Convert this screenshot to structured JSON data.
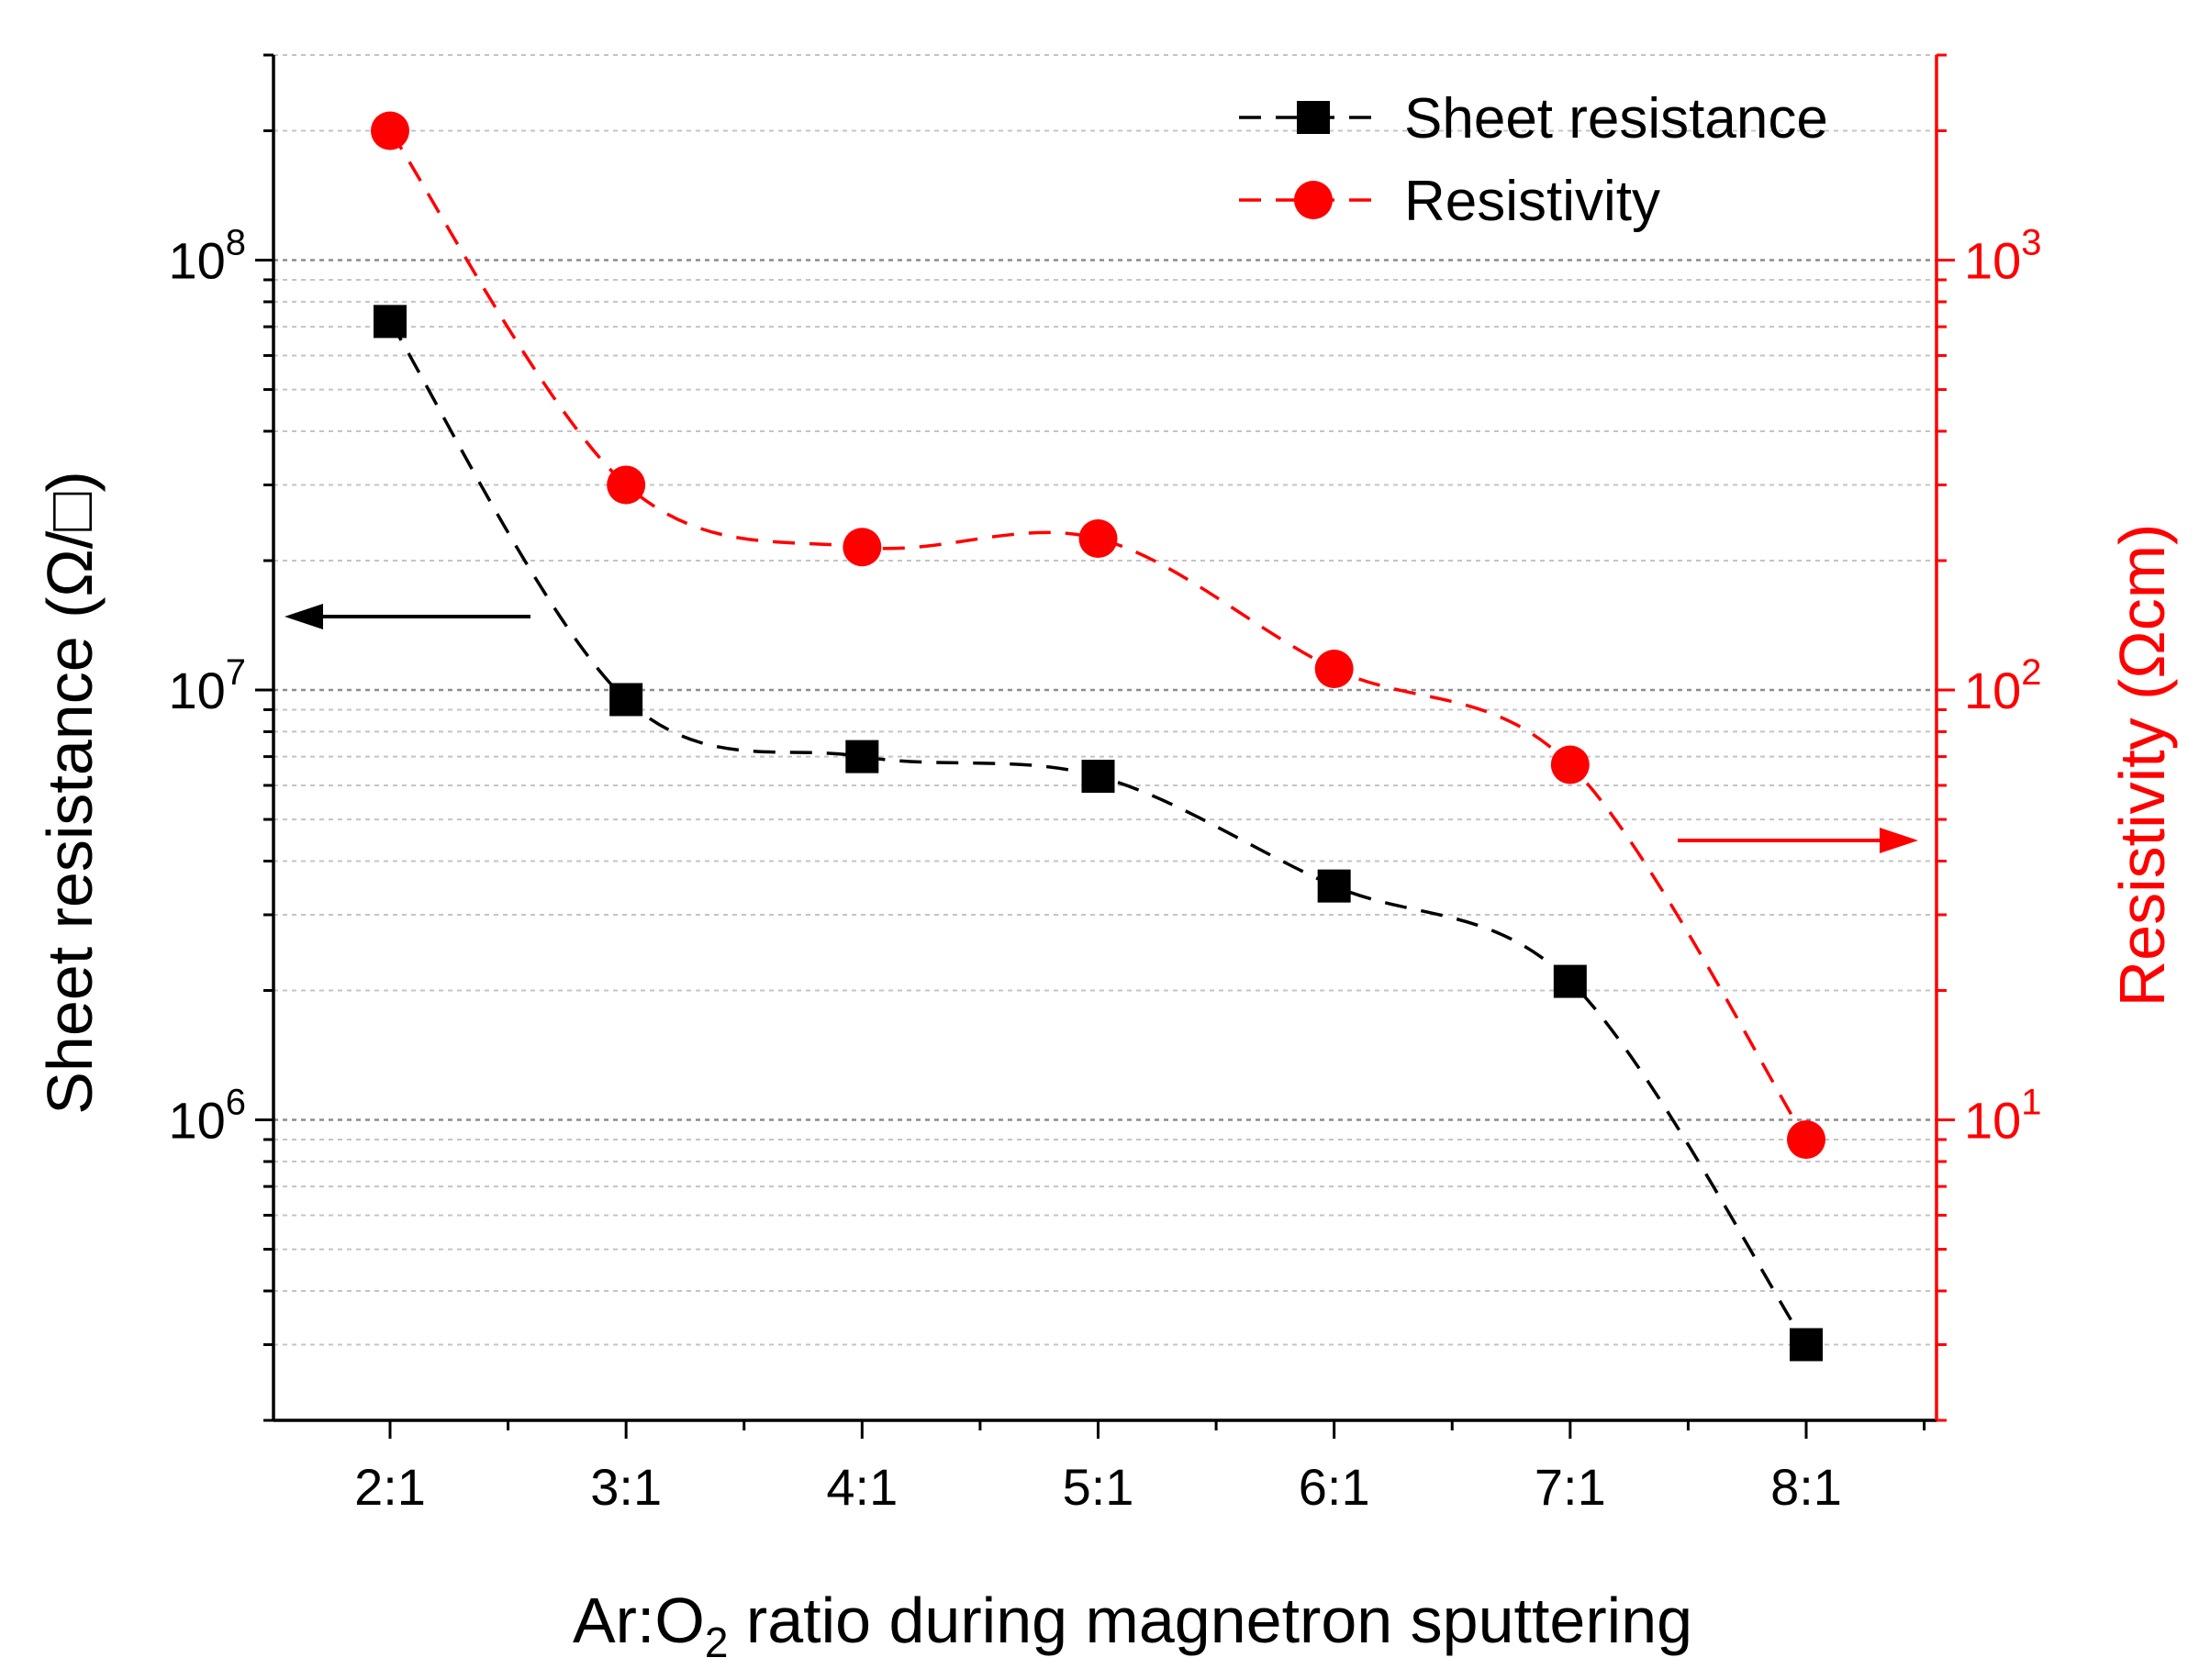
{
  "chart_data": {
    "type": "scatter",
    "x_axis": {
      "title_parts": [
        "Ar:O",
        "2",
        " ratio during magnetron sputtering"
      ],
      "categories": [
        "2:1",
        "3:1",
        "4:1",
        "5:1",
        "6:1",
        "7:1",
        "8:1"
      ]
    },
    "y_left": {
      "title": "Sheet resistance (Ω/□)",
      "scale": "log",
      "range": [
        200000,
        300000000
      ],
      "ticks": [
        {
          "value": 1000000,
          "base": "10",
          "exp": "6"
        },
        {
          "value": 10000000,
          "base": "10",
          "exp": "7"
        },
        {
          "value": 100000000,
          "base": "10",
          "exp": "8"
        }
      ]
    },
    "y_right": {
      "title": "Resistivity (Ωcm)",
      "scale": "log",
      "range": [
        2,
        3000
      ],
      "ticks": [
        {
          "value": 10,
          "base": "10",
          "exp": "1"
        },
        {
          "value": 100,
          "base": "10",
          "exp": "2"
        },
        {
          "value": 1000,
          "base": "10",
          "exp": "3"
        }
      ]
    },
    "series": [
      {
        "name": "Sheet resistance",
        "axis": "left",
        "marker": "square",
        "color": "#000000",
        "values": [
          72000000,
          9500000,
          7000000,
          6300000,
          3500000,
          2100000,
          300000
        ]
      },
      {
        "name": "Resistivity",
        "axis": "right",
        "marker": "circle",
        "color": "#ff0000",
        "values": [
          2000,
          300,
          215,
          225,
          112,
          67,
          9
        ]
      }
    ],
    "annotations": [
      {
        "type": "arrow",
        "direction": "left",
        "color": "#000000",
        "meaning": "points to left axis"
      },
      {
        "type": "arrow",
        "direction": "right",
        "color": "#ff0000",
        "meaning": "points to right axis"
      }
    ],
    "grid": "horizontal dashed gray",
    "legend_position": "top-right"
  }
}
